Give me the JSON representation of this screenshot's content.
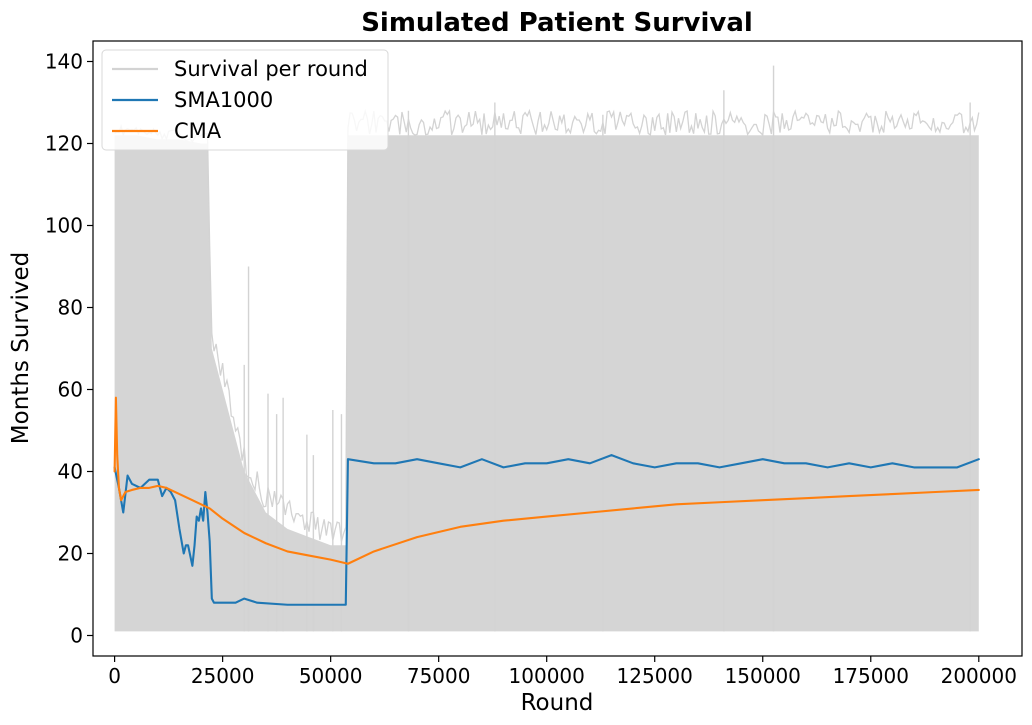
{
  "chart_data": {
    "type": "line",
    "title": "Simulated Patient Survival",
    "xlabel": "Round",
    "ylabel": "Months Survived",
    "xlim": [
      -5000,
      210000
    ],
    "ylim": [
      -5,
      145
    ],
    "xticks": [
      0,
      25000,
      50000,
      75000,
      100000,
      125000,
      150000,
      175000,
      200000
    ],
    "xtick_labels": [
      "0",
      "25000",
      "50000",
      "75000",
      "100000",
      "125000",
      "150000",
      "175000",
      "200000"
    ],
    "yticks": [
      0,
      20,
      40,
      60,
      80,
      100,
      120,
      140
    ],
    "ytick_labels": [
      "0",
      "20",
      "40",
      "60",
      "80",
      "100",
      "120",
      "140"
    ],
    "grid": false,
    "legend_position": "top-left",
    "colors": {
      "raw": "#d3d3d3",
      "sma": "#1f77b4",
      "cma": "#ff7f0e"
    },
    "series": [
      {
        "name": "Survival per round",
        "key": "raw",
        "style": "noisy band",
        "x": [
          0,
          2000,
          5000,
          10000,
          15000,
          20000,
          21500,
          22500,
          25000,
          30000,
          35000,
          40000,
          45000,
          50000,
          53500,
          54000,
          60000,
          75000,
          100000,
          125000,
          150000,
          175000,
          200000
        ],
        "lower": [
          1,
          1,
          1,
          1,
          1,
          1,
          1,
          1,
          1,
          1,
          1,
          1,
          1,
          1,
          1,
          1,
          1,
          1,
          1,
          1,
          1,
          1,
          1
        ],
        "upper": [
          122,
          122,
          122,
          121,
          121,
          120,
          120,
          70,
          60,
          40,
          30,
          26,
          24,
          22,
          22,
          122,
          122,
          122,
          122,
          122,
          122,
          122,
          122
        ],
        "spikes": [
          {
            "x": 30000,
            "y": 66
          },
          {
            "x": 31000,
            "y": 90
          },
          {
            "x": 35500,
            "y": 59
          },
          {
            "x": 37500,
            "y": 54
          },
          {
            "x": 39000,
            "y": 58
          },
          {
            "x": 44500,
            "y": 49
          },
          {
            "x": 46000,
            "y": 44
          },
          {
            "x": 50500,
            "y": 55
          },
          {
            "x": 52500,
            "y": 54
          },
          {
            "x": 152500,
            "y": 139
          },
          {
            "x": 141000,
            "y": 133
          },
          {
            "x": 88000,
            "y": 130
          },
          {
            "x": 198000,
            "y": 130
          },
          {
            "x": 68000,
            "y": 128
          },
          {
            "x": 113000,
            "y": 127
          }
        ]
      },
      {
        "name": "SMA1000",
        "key": "sma",
        "style": "line",
        "x": [
          0,
          1000,
          2000,
          3000,
          4000,
          6000,
          8000,
          10000,
          11000,
          12000,
          13000,
          14000,
          15000,
          16000,
          16500,
          17000,
          18000,
          18500,
          19000,
          19500,
          20000,
          20500,
          21000,
          21500,
          22000,
          22500,
          23000,
          25000,
          28000,
          30000,
          33000,
          40000,
          45000,
          50000,
          53000,
          53500,
          54000,
          60000,
          65000,
          70000,
          75000,
          80000,
          85000,
          90000,
          95000,
          100000,
          105000,
          110000,
          115000,
          120000,
          125000,
          130000,
          135000,
          140000,
          145000,
          150000,
          155000,
          160000,
          165000,
          170000,
          175000,
          180000,
          185000,
          190000,
          195000,
          200000
        ],
        "y": [
          41,
          36,
          30,
          39,
          37,
          36,
          38,
          38,
          34,
          36,
          35,
          33,
          26,
          20,
          22,
          22,
          17,
          22,
          29,
          28,
          31,
          28,
          35,
          30,
          23,
          9,
          8,
          8,
          8,
          9,
          8,
          7.5,
          7.5,
          7.5,
          7.5,
          7.5,
          43,
          42,
          42,
          43,
          42,
          41,
          43,
          41,
          42,
          42,
          43,
          42,
          44,
          42,
          41,
          42,
          42,
          41,
          42,
          43,
          42,
          42,
          41,
          42,
          41,
          42,
          41,
          41,
          41,
          43
        ]
      },
      {
        "name": "CMA",
        "key": "cma",
        "style": "line",
        "x": [
          0,
          300,
          600,
          1000,
          1500,
          2500,
          4000,
          6000,
          8000,
          10000,
          12000,
          15000,
          18000,
          20000,
          22000,
          25000,
          30000,
          35000,
          40000,
          45000,
          50000,
          54000,
          60000,
          70000,
          80000,
          90000,
          100000,
          110000,
          120000,
          130000,
          140000,
          150000,
          160000,
          170000,
          180000,
          190000,
          200000
        ],
        "y": [
          40,
          58,
          44,
          36,
          33,
          35,
          35.5,
          36,
          36,
          36.5,
          36,
          34.5,
          33,
          32,
          31,
          28.5,
          25,
          22.5,
          20.5,
          19.5,
          18.5,
          17.5,
          20.5,
          24,
          26.5,
          28,
          29,
          30,
          31,
          32,
          32.5,
          33,
          33.5,
          34,
          34.5,
          35,
          35.5
        ]
      }
    ]
  }
}
